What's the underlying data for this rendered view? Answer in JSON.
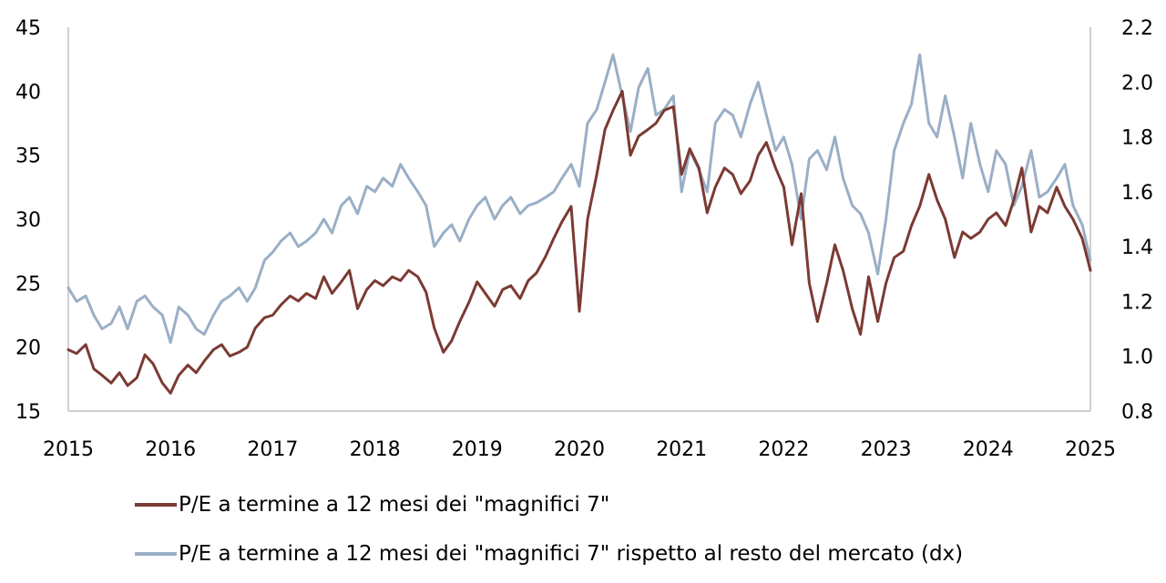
{
  "chart_data": {
    "type": "line",
    "x_axis": {
      "range": [
        2015,
        2025
      ],
      "ticks": [
        "2015",
        "2016",
        "2017",
        "2018",
        "2019",
        "2020",
        "2021",
        "2022",
        "2023",
        "2024",
        "2025"
      ]
    },
    "y_left": {
      "range": [
        15,
        45
      ],
      "ticks": [
        "15",
        "20",
        "25",
        "30",
        "35",
        "40",
        "45"
      ]
    },
    "y_right": {
      "range": [
        0.8,
        2.2
      ],
      "ticks": [
        "0.8",
        "1.0",
        "1.2",
        "1.4",
        "1.6",
        "1.8",
        "2.0",
        "2.2"
      ]
    },
    "grid": false,
    "legend_position": "bottom",
    "series": [
      {
        "name": "P/E a termine a 12 mesi dei \"magnifici 7\"",
        "axis": "left",
        "color": "#7b3a33",
        "x": [
          2015.0,
          2015.08,
          2015.17,
          2015.25,
          2015.33,
          2015.42,
          2015.5,
          2015.58,
          2015.67,
          2015.75,
          2015.83,
          2015.92,
          2016.0,
          2016.08,
          2016.17,
          2016.25,
          2016.33,
          2016.42,
          2016.5,
          2016.58,
          2016.67,
          2016.75,
          2016.83,
          2016.92,
          2017.0,
          2017.08,
          2017.17,
          2017.25,
          2017.33,
          2017.42,
          2017.5,
          2017.58,
          2017.67,
          2017.75,
          2017.83,
          2017.92,
          2018.0,
          2018.08,
          2018.17,
          2018.25,
          2018.33,
          2018.42,
          2018.5,
          2018.58,
          2018.67,
          2018.75,
          2018.83,
          2018.92,
          2019.0,
          2019.08,
          2019.17,
          2019.25,
          2019.33,
          2019.42,
          2019.5,
          2019.58,
          2019.67,
          2019.75,
          2019.83,
          2019.92,
          2020.0,
          2020.08,
          2020.17,
          2020.25,
          2020.33,
          2020.42,
          2020.5,
          2020.58,
          2020.67,
          2020.75,
          2020.83,
          2020.92,
          2021.0,
          2021.08,
          2021.17,
          2021.25,
          2021.33,
          2021.42,
          2021.5,
          2021.58,
          2021.67,
          2021.75,
          2021.83,
          2021.92,
          2022.0,
          2022.08,
          2022.17,
          2022.25,
          2022.33,
          2022.42,
          2022.5,
          2022.58,
          2022.67,
          2022.75,
          2022.83,
          2022.92,
          2023.0,
          2023.08,
          2023.17,
          2023.25,
          2023.33,
          2023.42,
          2023.5,
          2023.58,
          2023.67,
          2023.75,
          2023.83,
          2023.92,
          2024.0,
          2024.08,
          2024.17,
          2024.25,
          2024.33,
          2024.42,
          2024.5,
          2024.58,
          2024.67,
          2024.75,
          2024.83,
          2024.92,
          2025.0
        ],
        "values": [
          19.8,
          19.5,
          20.2,
          18.3,
          17.8,
          17.2,
          18.0,
          17.0,
          17.6,
          19.4,
          18.7,
          17.2,
          16.4,
          17.8,
          18.6,
          18.0,
          18.9,
          19.8,
          20.2,
          19.3,
          19.6,
          20.0,
          21.5,
          22.3,
          22.5,
          23.3,
          24.0,
          23.6,
          24.2,
          23.8,
          25.5,
          24.2,
          25.1,
          26.0,
          23.0,
          24.5,
          25.2,
          24.8,
          25.5,
          25.2,
          26.0,
          25.5,
          24.3,
          21.5,
          19.6,
          20.5,
          22.0,
          23.5,
          25.1,
          24.2,
          23.2,
          24.5,
          24.8,
          23.8,
          25.2,
          25.8,
          27.1,
          28.5,
          29.8,
          31.0,
          22.8,
          30.0,
          33.5,
          37.0,
          38.5,
          40.0,
          35.0,
          36.5,
          37.0,
          37.5,
          38.5,
          38.8,
          33.5,
          35.5,
          34.0,
          30.5,
          32.5,
          34.0,
          33.5,
          32.0,
          33.0,
          35.0,
          36.0,
          34.0,
          32.5,
          28.0,
          32.0,
          25.0,
          22.0,
          25.0,
          28.0,
          26.0,
          23.0,
          21.0,
          25.5,
          22.0,
          25.0,
          27.0,
          27.5,
          29.5,
          31.0,
          33.5,
          31.5,
          30.0,
          27.0,
          29.0,
          28.5,
          29.0,
          30.0,
          30.5,
          29.5,
          31.5,
          34.0,
          29.0,
          31.0,
          30.5,
          32.5,
          31.0,
          30.0,
          28.5,
          26.0
        ]
      },
      {
        "name": "P/E a termine a 12 mesi dei \"magnifici 7\" rispetto al resto del mercato (dx)",
        "axis": "right",
        "color": "#9aafc6",
        "x": [
          2015.0,
          2015.08,
          2015.17,
          2015.25,
          2015.33,
          2015.42,
          2015.5,
          2015.58,
          2015.67,
          2015.75,
          2015.83,
          2015.92,
          2016.0,
          2016.08,
          2016.17,
          2016.25,
          2016.33,
          2016.42,
          2016.5,
          2016.58,
          2016.67,
          2016.75,
          2016.83,
          2016.92,
          2017.0,
          2017.08,
          2017.17,
          2017.25,
          2017.33,
          2017.42,
          2017.5,
          2017.58,
          2017.67,
          2017.75,
          2017.83,
          2017.92,
          2018.0,
          2018.08,
          2018.17,
          2018.25,
          2018.33,
          2018.42,
          2018.5,
          2018.58,
          2018.67,
          2018.75,
          2018.83,
          2018.92,
          2019.0,
          2019.08,
          2019.17,
          2019.25,
          2019.33,
          2019.42,
          2019.5,
          2019.58,
          2019.67,
          2019.75,
          2019.83,
          2019.92,
          2020.0,
          2020.08,
          2020.17,
          2020.25,
          2020.33,
          2020.42,
          2020.5,
          2020.58,
          2020.67,
          2020.75,
          2020.83,
          2020.92,
          2021.0,
          2021.08,
          2021.17,
          2021.25,
          2021.33,
          2021.42,
          2021.5,
          2021.58,
          2021.67,
          2021.75,
          2021.83,
          2021.92,
          2022.0,
          2022.08,
          2022.17,
          2022.25,
          2022.33,
          2022.42,
          2022.5,
          2022.58,
          2022.67,
          2022.75,
          2022.83,
          2022.92,
          2023.0,
          2023.08,
          2023.17,
          2023.25,
          2023.33,
          2023.42,
          2023.5,
          2023.58,
          2023.67,
          2023.75,
          2023.83,
          2023.92,
          2024.0,
          2024.08,
          2024.17,
          2024.25,
          2024.33,
          2024.42,
          2024.5,
          2024.58,
          2024.67,
          2024.75,
          2024.83,
          2024.92,
          2025.0
        ],
        "values": [
          1.25,
          1.2,
          1.22,
          1.15,
          1.1,
          1.12,
          1.18,
          1.1,
          1.2,
          1.22,
          1.18,
          1.15,
          1.05,
          1.18,
          1.15,
          1.1,
          1.08,
          1.15,
          1.2,
          1.22,
          1.25,
          1.2,
          1.25,
          1.35,
          1.38,
          1.42,
          1.45,
          1.4,
          1.42,
          1.45,
          1.5,
          1.45,
          1.55,
          1.58,
          1.52,
          1.62,
          1.6,
          1.65,
          1.62,
          1.7,
          1.65,
          1.6,
          1.55,
          1.4,
          1.45,
          1.48,
          1.42,
          1.5,
          1.55,
          1.58,
          1.5,
          1.55,
          1.58,
          1.52,
          1.55,
          1.56,
          1.58,
          1.6,
          1.65,
          1.7,
          1.62,
          1.85,
          1.9,
          2.0,
          2.1,
          1.95,
          1.82,
          1.98,
          2.05,
          1.88,
          1.9,
          1.95,
          1.6,
          1.75,
          1.68,
          1.6,
          1.85,
          1.9,
          1.88,
          1.8,
          1.92,
          2.0,
          1.88,
          1.75,
          1.8,
          1.7,
          1.5,
          1.72,
          1.75,
          1.68,
          1.8,
          1.65,
          1.55,
          1.52,
          1.45,
          1.3,
          1.5,
          1.75,
          1.85,
          1.92,
          2.1,
          1.85,
          1.8,
          1.95,
          1.8,
          1.65,
          1.85,
          1.7,
          1.6,
          1.75,
          1.7,
          1.55,
          1.62,
          1.75,
          1.58,
          1.6,
          1.65,
          1.7,
          1.55,
          1.48,
          1.35
        ]
      }
    ]
  },
  "legend": [
    {
      "label": "P/E a termine a 12 mesi dei \"magnifici 7\"",
      "color": "#7b3a33"
    },
    {
      "label": "P/E a termine a 12 mesi dei \"magnifici 7\" rispetto al resto del mercato (dx)",
      "color": "#9aafc6"
    }
  ]
}
